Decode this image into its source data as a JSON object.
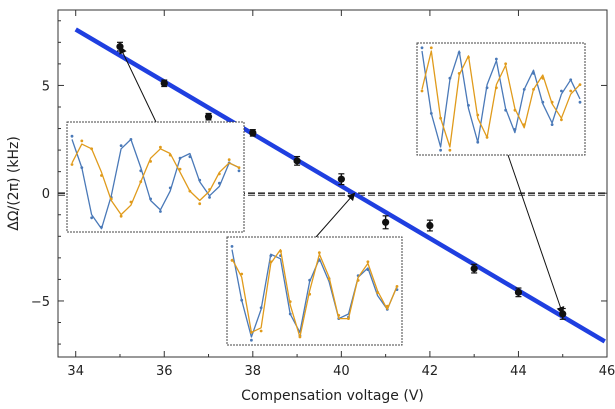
{
  "chart_data": {
    "type": "scatter",
    "title": "",
    "xlabel": "Compensation voltage (V)",
    "ylabel": "ΔΩ/(2π) (kHz)",
    "xlim": [
      33.6,
      46.0
    ],
    "ylim": [
      -7.6,
      8.5
    ],
    "xticks": [
      34,
      36,
      38,
      40,
      42,
      44,
      46
    ],
    "xtick_labels": [
      "34",
      "36",
      "38",
      "40",
      "42",
      "44",
      "46"
    ],
    "yticks": [
      -5,
      0,
      5
    ],
    "ytick_labels": [
      "−5",
      "0",
      "5"
    ],
    "grid": false,
    "series": [
      {
        "kind": "points-with-error-bars",
        "x": [
          35,
          36,
          37,
          38,
          39,
          40,
          41,
          42,
          43,
          44,
          45
        ],
        "y": [
          6.8,
          5.1,
          3.55,
          2.8,
          1.5,
          0.65,
          -1.35,
          -1.5,
          -3.5,
          -4.6,
          -5.6
        ],
        "yerr": [
          0.2,
          0.15,
          0.15,
          0.15,
          0.2,
          0.25,
          0.3,
          0.25,
          0.2,
          0.2,
          0.25
        ],
        "color": "#111111"
      },
      {
        "kind": "linear-fit",
        "x": [
          34,
          45.95
        ],
        "y": [
          7.6,
          -6.88
        ],
        "color": "#1f3fe0"
      },
      {
        "kind": "zero-line",
        "x": [
          34,
          46
        ],
        "y": [
          0,
          0
        ],
        "color": "#333333",
        "style": "dashed"
      }
    ],
    "insets": [
      {
        "name": "inset-35V",
        "points_to": {
          "x": 35,
          "y": 6.8
        },
        "curves": [
          {
            "color": "#4a79b8",
            "y": [
              0.8,
              0.2,
              -0.8,
              -1.1,
              -0.4,
              0.6,
              0.8,
              0.2,
              -0.5,
              -0.7,
              -0.3,
              0.4,
              0.5,
              -0.1,
              -0.4,
              -0.2,
              0.3,
              0.2
            ]
          },
          {
            "color": "#e09b1c",
            "y": [
              0.3,
              0.7,
              0.6,
              0.1,
              -0.5,
              -0.8,
              -0.6,
              -0.1,
              0.4,
              0.6,
              0.5,
              0.1,
              -0.3,
              -0.5,
              -0.3,
              0.1,
              0.3,
              0.2
            ]
          }
        ]
      },
      {
        "name": "inset-40V",
        "points_to": {
          "x": 40.3,
          "y": 0
        },
        "curves": [
          {
            "color": "#4a79b8",
            "y": [
              0.9,
              -0.2,
              -1.0,
              -0.4,
              0.8,
              0.7,
              -0.5,
              -0.9,
              0.2,
              0.7,
              0.2,
              -0.6,
              -0.5,
              0.3,
              0.5,
              -0.1,
              -0.4,
              0.1
            ]
          },
          {
            "color": "#e09b1c",
            "y": [
              0.7,
              0.3,
              -0.9,
              -0.8,
              0.6,
              0.9,
              -0.3,
              -1.0,
              0.0,
              0.8,
              0.3,
              -0.6,
              -0.6,
              0.3,
              0.6,
              0.0,
              -0.4,
              0.1
            ]
          }
        ]
      },
      {
        "name": "inset-45V",
        "points_to": {
          "x": 45,
          "y": -5.6
        },
        "curves": [
          {
            "color": "#4a79b8",
            "y": [
              1.0,
              -0.3,
              -1.0,
              0.4,
              1.0,
              -0.2,
              -0.9,
              0.3,
              0.8,
              -0.2,
              -0.7,
              0.2,
              0.6,
              -0.1,
              -0.5,
              0.1,
              0.4,
              0.0
            ]
          },
          {
            "color": "#e09b1c",
            "y": [
              0.2,
              1.0,
              -0.4,
              -1.0,
              0.5,
              0.9,
              -0.4,
              -0.8,
              0.3,
              0.7,
              -0.2,
              -0.6,
              0.2,
              0.5,
              -0.1,
              -0.4,
              0.1,
              0.3
            ]
          }
        ]
      }
    ]
  }
}
